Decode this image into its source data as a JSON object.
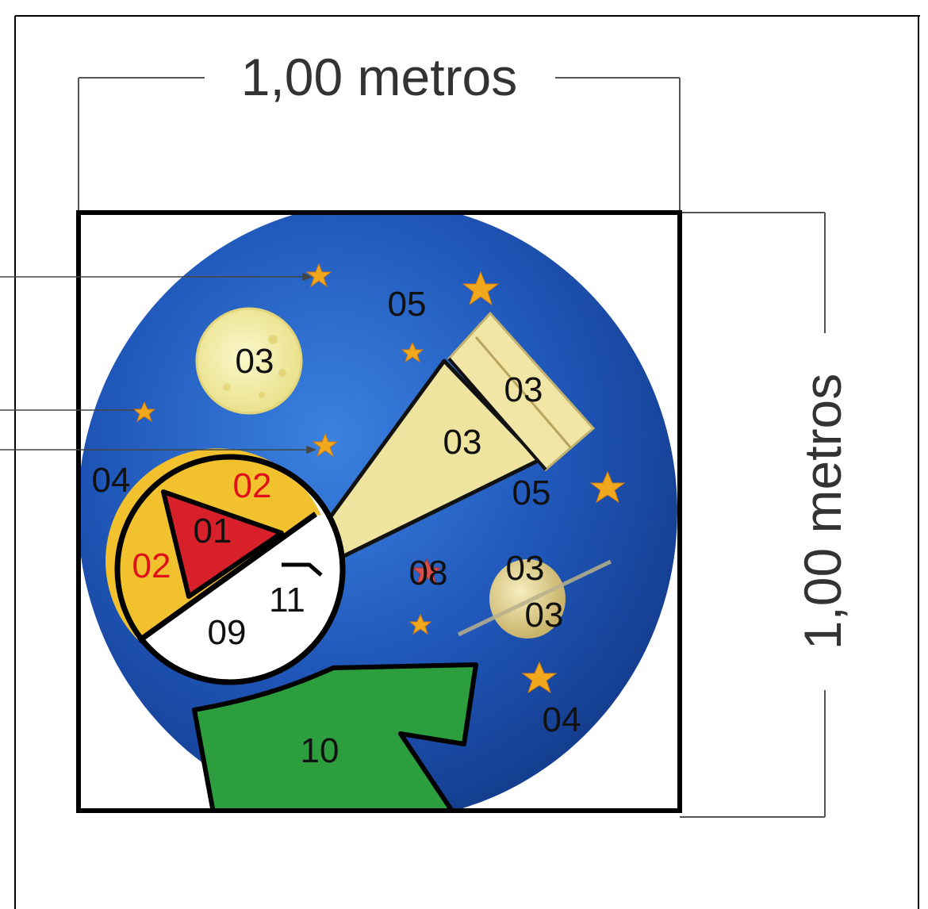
{
  "dimensions": {
    "width_label": "1,00 metros",
    "height_label": "1,00 metros"
  },
  "colors": {
    "sky_blue": "#1f56b8",
    "star_orange": "#f0a81c",
    "moon_cream": "#f4f0a8",
    "telescope_tan": "#efe3a0",
    "red_slice": "#d8202a",
    "yellow_slice": "#f2c12e",
    "green_shape": "#2c9e3e",
    "label_red": "#e0101a",
    "label_black": "#111111",
    "pointer_gray": "#555555"
  },
  "labels": {
    "sky_top": "05",
    "moon": "03",
    "telescope_upper": "03",
    "telescope_lower": "03",
    "sky_left": "04",
    "pie_top": "02",
    "pie_left": "02",
    "pie_red": "01",
    "telescope_base": "05",
    "red_star": "08",
    "planet_upper": "03",
    "planet_lower": "03",
    "eyepiece": "11",
    "white_area": "09",
    "sky_bottom_right": "04",
    "green_shape": "10"
  }
}
